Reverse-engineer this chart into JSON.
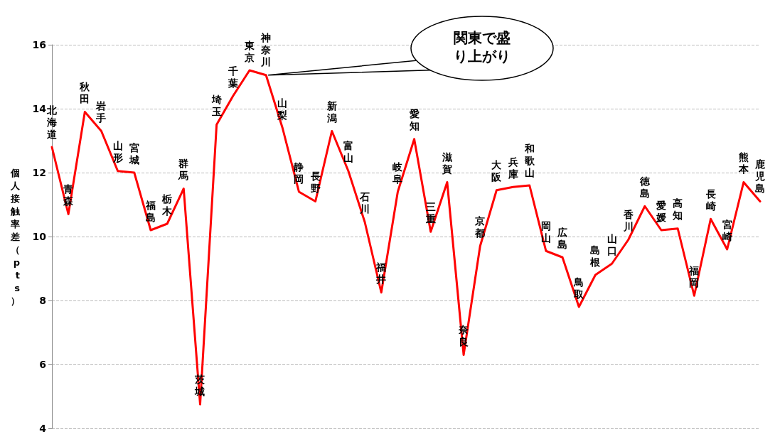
{
  "chart_data": {
    "type": "line",
    "ylabel": "個人接触率差（pts）",
    "categories": [
      "北海道",
      "青森",
      "秋田",
      "岩手",
      "山形",
      "宮城",
      "福島",
      "栃木",
      "群馬",
      "茨城",
      "埼玉",
      "千葉",
      "東京",
      "神奈川",
      "山梨",
      "静岡",
      "長野",
      "新潟",
      "富山",
      "石川",
      "福井",
      "岐阜",
      "愛知",
      "三重",
      "滋賀",
      "奈良",
      "京都",
      "大阪",
      "兵庫",
      "和歌山",
      "岡山",
      "広島",
      "鳥取",
      "島根",
      "山口",
      "香川",
      "徳島",
      "愛媛",
      "高知",
      "福岡",
      "長崎",
      "宮崎",
      "熊本",
      "鹿児島"
    ],
    "series": [
      {
        "color": "#ff0000",
        "values": [
          12.8,
          10.7,
          13.9,
          13.3,
          12.05,
          12.0,
          10.2,
          10.4,
          11.5,
          4.75,
          13.5,
          14.4,
          15.2,
          15.05,
          13.4,
          11.4,
          11.1,
          13.3,
          12.05,
          10.45,
          8.25,
          11.4,
          13.05,
          10.15,
          11.7,
          6.3,
          9.7,
          11.45,
          11.55,
          11.6,
          9.55,
          9.35,
          7.8,
          8.8,
          9.15,
          9.9,
          10.95,
          10.2,
          10.25,
          8.15,
          10.55,
          9.6,
          11.7,
          11.1
        ]
      }
    ],
    "ylim": [
      4,
      16
    ],
    "yticks": [
      4,
      6,
      8,
      10,
      12,
      14,
      16
    ],
    "grid": "y",
    "tick_labels": "y",
    "marker": "none",
    "line_style": "solid",
    "annotations": [
      {
        "text": "関東で盛り上がり",
        "x": "神奈川",
        "y": 15.05
      }
    ]
  }
}
